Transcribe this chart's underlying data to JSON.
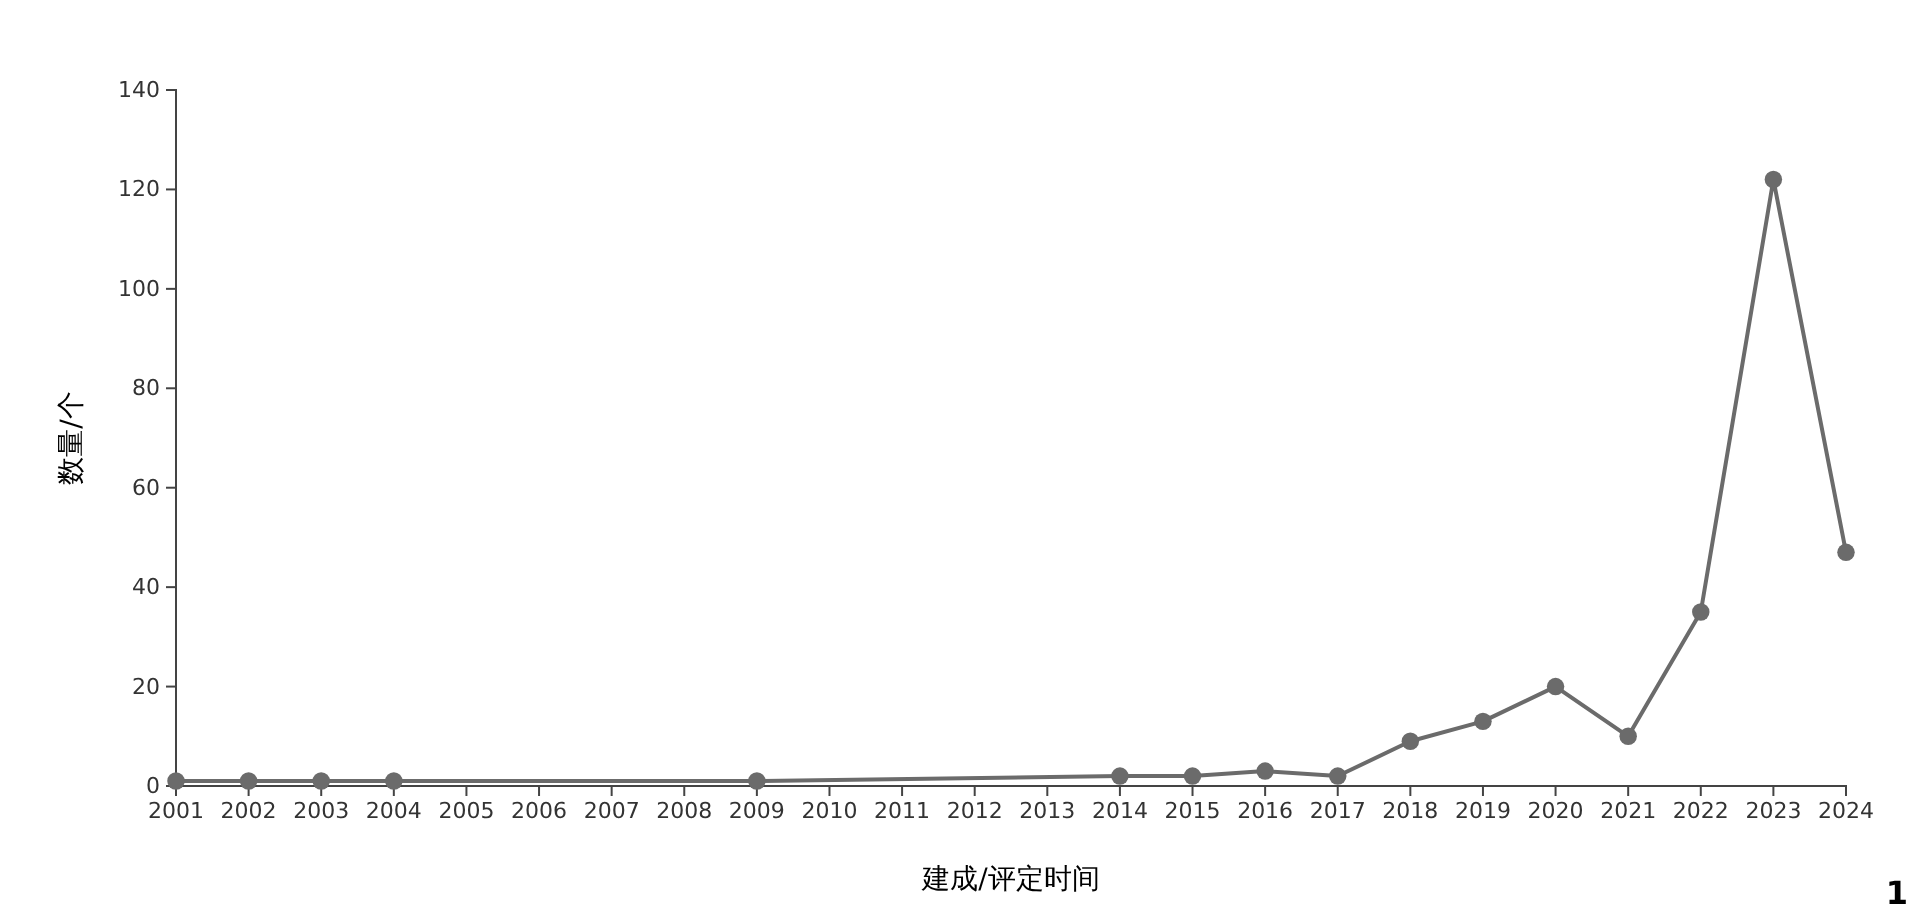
{
  "chart_data": {
    "type": "line",
    "xlabel": "建成/评定时间",
    "ylabel": "数量/个",
    "x": [
      2001,
      2002,
      2003,
      2004,
      2009,
      2014,
      2015,
      2016,
      2017,
      2018,
      2019,
      2020,
      2021,
      2022,
      2023,
      2024
    ],
    "series": [
      {
        "color": "#6b6b6b",
        "values": [
          1,
          1,
          1,
          1,
          1,
          2,
          2,
          3,
          2,
          9,
          13,
          20,
          10,
          35,
          122,
          47
        ]
      }
    ],
    "xlim": [
      2001,
      2024
    ],
    "xticks": [
      2001,
      2002,
      2003,
      2004,
      2005,
      2006,
      2007,
      2008,
      2009,
      2010,
      2011,
      2012,
      2013,
      2014,
      2015,
      2016,
      2017,
      2018,
      2019,
      2020,
      2021,
      2022,
      2023,
      2024
    ],
    "ylim": [
      0,
      140
    ],
    "yticks": [
      0,
      20,
      40,
      60,
      80,
      100,
      120,
      140
    ],
    "grid": false,
    "marker": "circle",
    "line_style": "solid",
    "annotations": [
      "1"
    ]
  }
}
